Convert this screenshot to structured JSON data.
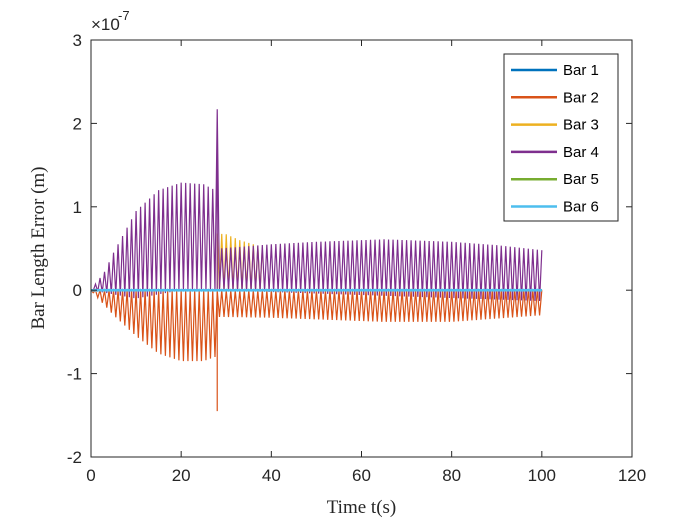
{
  "chart_data": {
    "type": "line",
    "title": "",
    "xlabel": "Time t(s)",
    "ylabel": "Bar Length Error (m)",
    "exponent_label": "×10",
    "exponent_power": "-7",
    "xlim": [
      0,
      120
    ],
    "ylim": [
      -2,
      3
    ],
    "xticks": [
      0,
      20,
      40,
      60,
      80,
      100,
      120
    ],
    "yticks": [
      -2,
      -1,
      0,
      1,
      2,
      3
    ],
    "xtick_labels": [
      "0",
      "20",
      "40",
      "60",
      "80",
      "100",
      "120"
    ],
    "ytick_labels": [
      "-2",
      "-1",
      "0",
      "1",
      "2",
      "3"
    ],
    "grid": false,
    "legend_position": "top-right",
    "oscillation_period_s": 1,
    "t_end": 100,
    "series": [
      {
        "name": "Bar 1",
        "color": "#0072BD",
        "envelope_upper": [
          [
            0,
            0.01
          ],
          [
            50,
            0.01
          ],
          [
            100,
            0.01
          ]
        ],
        "envelope_lower": [
          [
            0,
            -0.01
          ],
          [
            50,
            -0.01
          ],
          [
            100,
            -0.01
          ]
        ]
      },
      {
        "name": "Bar 2",
        "color": "#D95319",
        "envelope_upper": [
          [
            0,
            0
          ],
          [
            100,
            0
          ],
          [
            100,
            0.08
          ]
        ],
        "envelope_lower": [
          [
            0,
            0
          ],
          [
            5,
            -0.3
          ],
          [
            10,
            -0.55
          ],
          [
            15,
            -0.76
          ],
          [
            20,
            -0.85
          ],
          [
            25,
            -0.85
          ],
          [
            27.5,
            -0.8
          ],
          [
            28,
            -1.45
          ],
          [
            28.5,
            -0.32
          ],
          [
            40,
            -0.33
          ],
          [
            50,
            -0.35
          ],
          [
            65,
            -0.38
          ],
          [
            80,
            -0.38
          ],
          [
            90,
            -0.34
          ],
          [
            100,
            -0.3
          ]
        ]
      },
      {
        "name": "Bar 3",
        "color": "#EDB120",
        "envelope_upper": [
          [
            28,
            0.68
          ],
          [
            30,
            0.67
          ],
          [
            33,
            0.6
          ],
          [
            36,
            0.55
          ],
          [
            38,
            0.5
          ]
        ],
        "envelope_lower": [
          [
            28,
            0
          ],
          [
            38,
            0
          ]
        ]
      },
      {
        "name": "Bar 4",
        "color": "#7E2F8E",
        "envelope_upper": [
          [
            0,
            0
          ],
          [
            3,
            0.22
          ],
          [
            5,
            0.45
          ],
          [
            10,
            0.95
          ],
          [
            15,
            1.2
          ],
          [
            20,
            1.29
          ],
          [
            25,
            1.27
          ],
          [
            27.5,
            1.2
          ],
          [
            28,
            2.17
          ],
          [
            28.5,
            0.5
          ],
          [
            40,
            0.55
          ],
          [
            50,
            0.58
          ],
          [
            65,
            0.61
          ],
          [
            80,
            0.58
          ],
          [
            90,
            0.54
          ],
          [
            100,
            0.48
          ]
        ],
        "envelope_lower": [
          [
            0,
            0
          ],
          [
            5,
            -0.05
          ],
          [
            10,
            -0.1
          ],
          [
            20,
            0
          ],
          [
            28,
            0
          ],
          [
            100,
            -0.13
          ]
        ]
      },
      {
        "name": "Bar 5",
        "color": "#77AC30",
        "envelope_upper": [
          [
            0,
            0.005
          ],
          [
            100,
            0.005
          ]
        ],
        "envelope_lower": [
          [
            0,
            -0.005
          ],
          [
            100,
            -0.005
          ]
        ]
      },
      {
        "name": "Bar 6",
        "color": "#4DBEEE",
        "envelope_upper": [
          [
            0,
            0.01
          ],
          [
            100,
            0.01
          ]
        ],
        "envelope_lower": [
          [
            0,
            -0.01
          ],
          [
            100,
            -0.01
          ]
        ]
      }
    ]
  }
}
